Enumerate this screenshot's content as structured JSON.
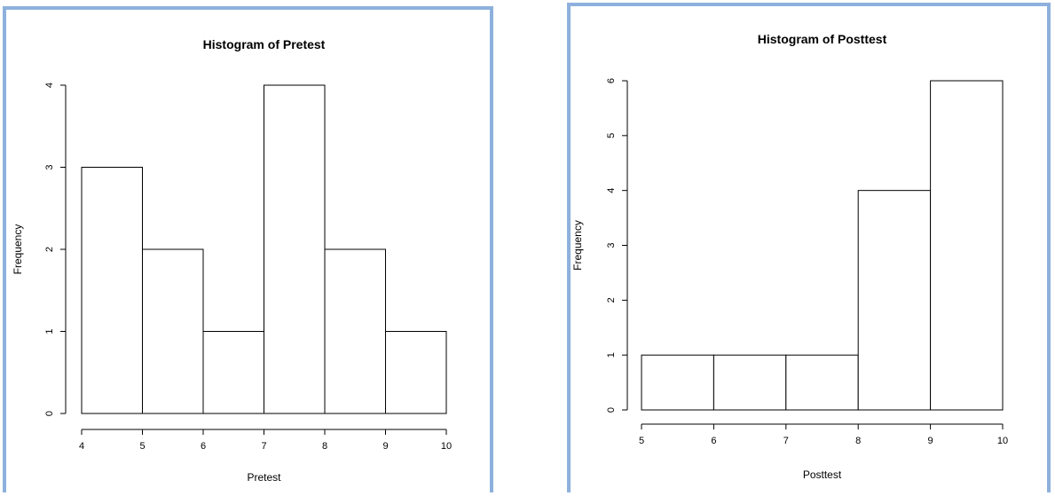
{
  "chart_data": [
    {
      "type": "bar",
      "subtype": "histogram",
      "title": "Histogram of Pretest",
      "xlabel": "Pretest",
      "ylabel": "Frequency",
      "bins": [
        [
          4,
          5
        ],
        [
          5,
          6
        ],
        [
          6,
          7
        ],
        [
          7,
          8
        ],
        [
          8,
          9
        ],
        [
          9,
          10
        ]
      ],
      "values": [
        3,
        2,
        1,
        4,
        2,
        1
      ],
      "x_ticks": [
        4,
        5,
        6,
        7,
        8,
        9,
        10
      ],
      "y_ticks": [
        0,
        1,
        2,
        3,
        4
      ],
      "xlim": [
        4,
        10
      ],
      "ylim": [
        0,
        4
      ],
      "grid": false,
      "colors": {
        "bar_fill": "#ffffff",
        "bar_stroke": "#000000",
        "frame": "#8eb0dc"
      }
    },
    {
      "type": "bar",
      "subtype": "histogram",
      "title": "Histogram of Posttest",
      "xlabel": "Posttest",
      "ylabel": "Frequency",
      "bins": [
        [
          5,
          6
        ],
        [
          6,
          7
        ],
        [
          7,
          8
        ],
        [
          8,
          9
        ],
        [
          9,
          10
        ]
      ],
      "values": [
        1,
        1,
        1,
        4,
        6
      ],
      "x_ticks": [
        5,
        6,
        7,
        8,
        9,
        10
      ],
      "y_ticks": [
        0,
        1,
        2,
        3,
        4,
        5,
        6
      ],
      "xlim": [
        5,
        10
      ],
      "ylim": [
        0,
        6
      ],
      "grid": false,
      "colors": {
        "bar_fill": "#ffffff",
        "bar_stroke": "#000000",
        "frame": "#8eb0dc"
      }
    }
  ]
}
